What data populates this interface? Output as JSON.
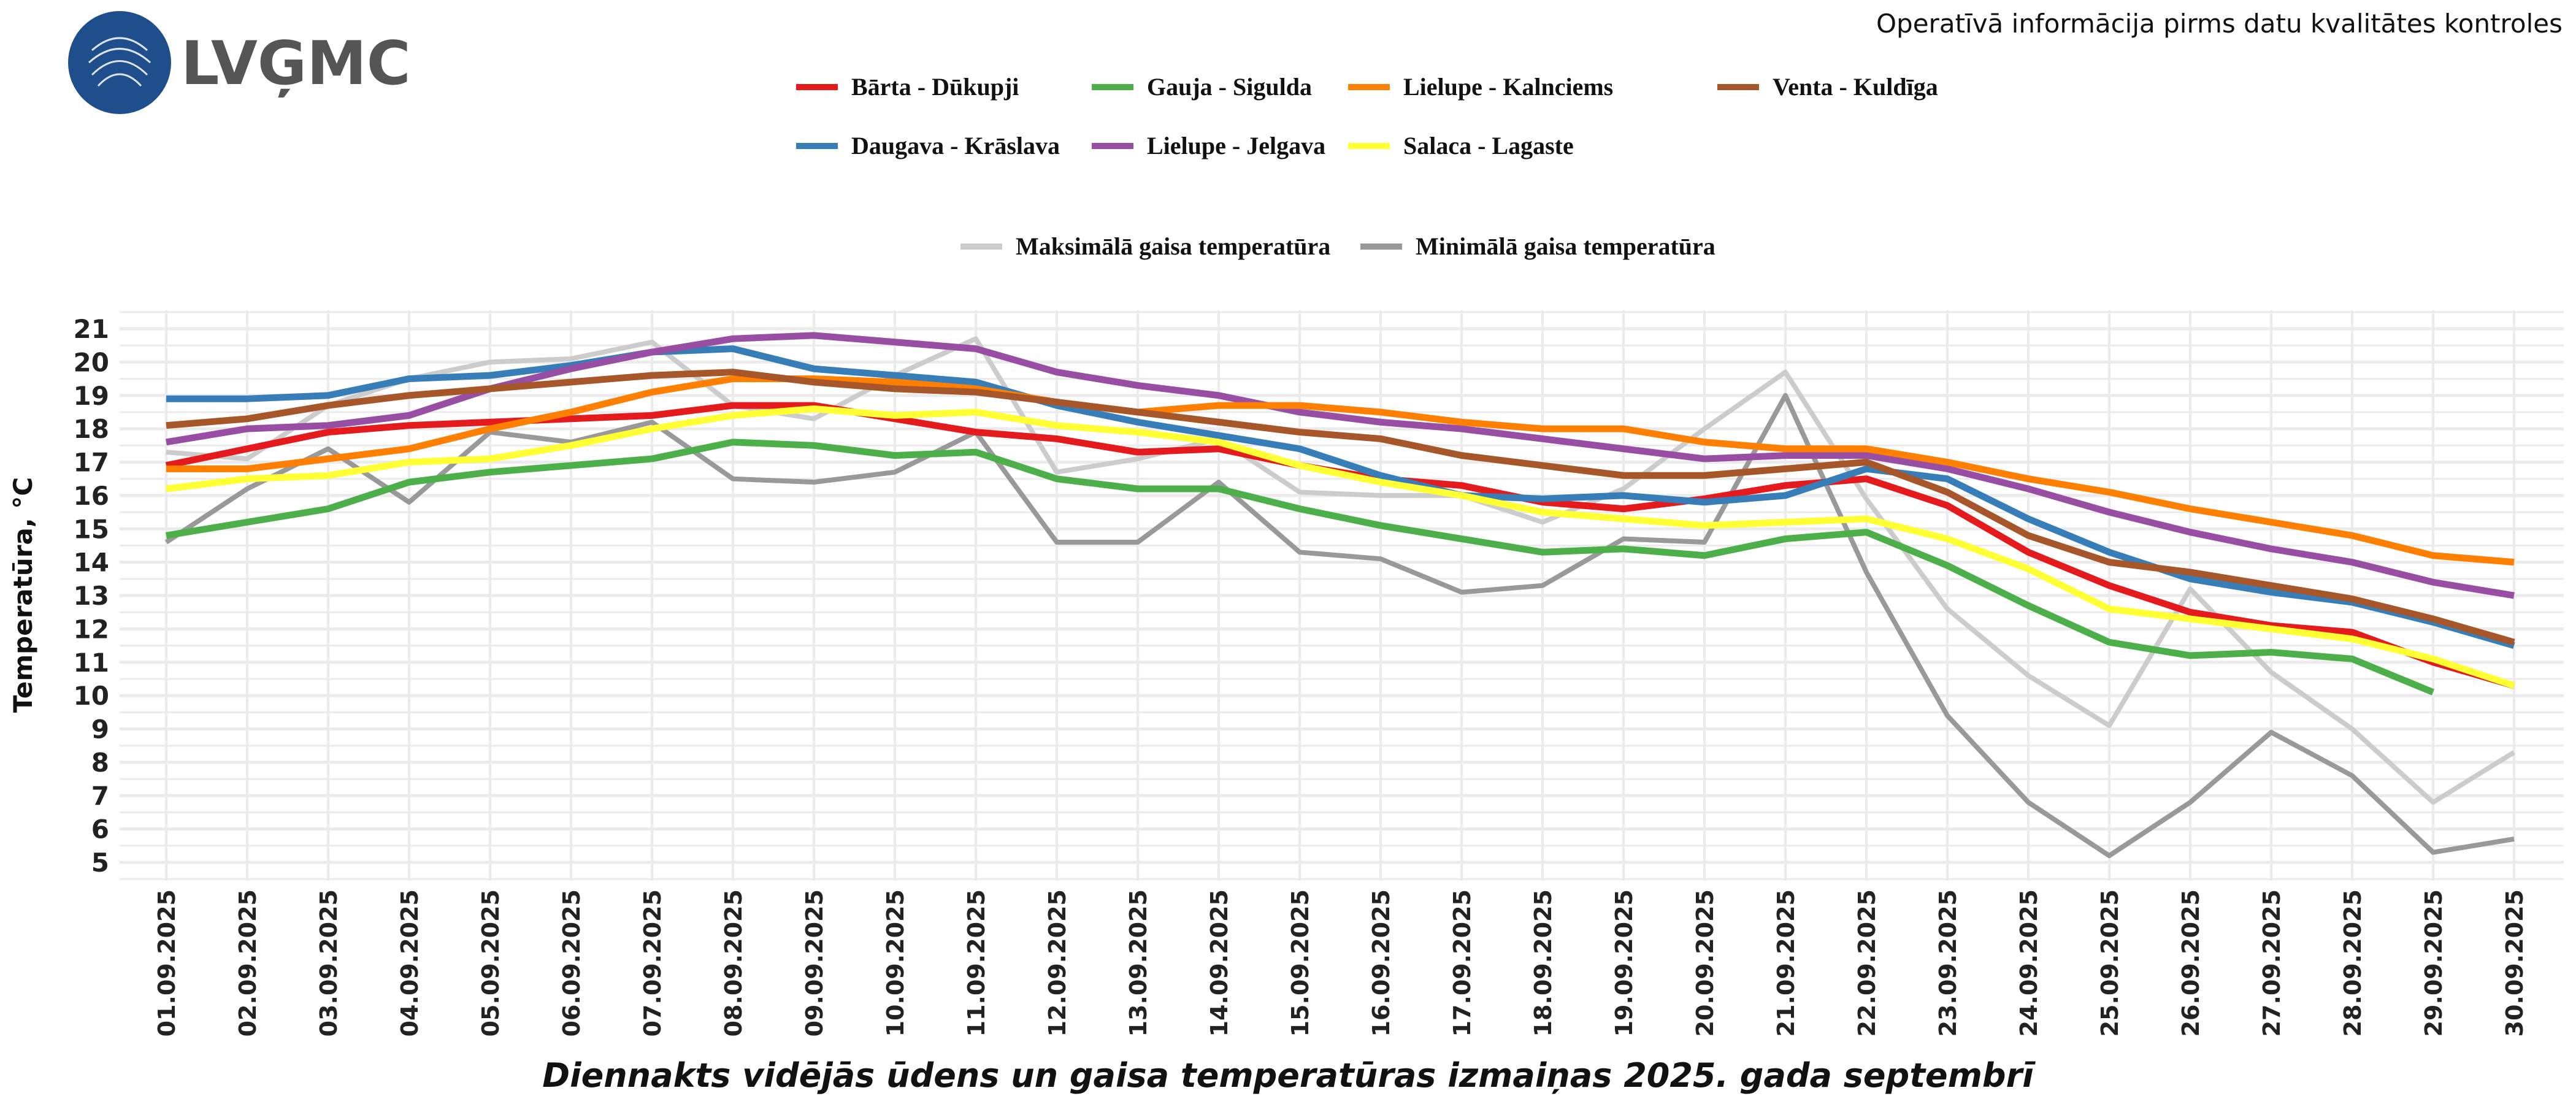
{
  "header": {
    "logo_text": "LVĢMC",
    "note": "Operatīvā informācija pirms datu kvalitātes kontroles"
  },
  "chart_data": {
    "type": "line",
    "title": "Diennakts vidējās ūdens un gaisa temperatūras izmaiņas 2025. gada septembrī",
    "xlabel": "",
    "ylabel": "Temperatūra, °C",
    "ylim": [
      5,
      21
    ],
    "yticks": [
      5,
      6,
      7,
      8,
      9,
      10,
      11,
      12,
      13,
      14,
      15,
      16,
      17,
      18,
      19,
      20,
      21
    ],
    "grid": true,
    "legend": "top",
    "categories": [
      "01.09.2025",
      "02.09.2025",
      "03.09.2025",
      "04.09.2025",
      "05.09.2025",
      "06.09.2025",
      "07.09.2025",
      "08.09.2025",
      "09.09.2025",
      "10.09.2025",
      "11.09.2025",
      "12.09.2025",
      "13.09.2025",
      "14.09.2025",
      "15.09.2025",
      "16.09.2025",
      "17.09.2025",
      "18.09.2025",
      "19.09.2025",
      "20.09.2025",
      "21.09.2025",
      "22.09.2025",
      "23.09.2025",
      "24.09.2025",
      "25.09.2025",
      "26.09.2025",
      "27.09.2025",
      "28.09.2025",
      "29.09.2025",
      "30.09.2025"
    ],
    "series": [
      {
        "name": "Maksimālā gaisa temperatūra",
        "color": "#cccccc",
        "group": "air",
        "values": [
          17.3,
          17.1,
          18.7,
          19.5,
          20.0,
          20.1,
          20.6,
          18.7,
          18.3,
          19.6,
          20.7,
          16.7,
          17.1,
          17.7,
          16.1,
          16.0,
          16.0,
          15.2,
          16.2,
          18.0,
          19.7,
          15.9,
          12.6,
          10.6,
          9.1,
          13.2,
          10.7,
          9.0,
          6.8,
          8.3
        ]
      },
      {
        "name": "Minimālā gaisa temperatūra",
        "color": "#999999",
        "group": "air",
        "values": [
          14.6,
          16.2,
          17.4,
          15.8,
          17.9,
          17.6,
          18.2,
          16.5,
          16.4,
          16.7,
          17.9,
          14.6,
          14.6,
          16.4,
          14.3,
          14.1,
          13.1,
          13.3,
          14.7,
          14.6,
          19.0,
          13.7,
          9.4,
          6.8,
          5.2,
          6.8,
          8.9,
          7.6,
          5.3,
          5.7
        ]
      },
      {
        "name": "Bārta - Dūkupji",
        "color": "#e41a1c",
        "group": "water",
        "values": [
          16.9,
          17.4,
          17.9,
          18.1,
          18.2,
          18.3,
          18.4,
          18.7,
          18.7,
          18.3,
          17.9,
          17.7,
          17.3,
          17.4,
          16.9,
          16.5,
          16.3,
          15.8,
          15.6,
          15.9,
          16.3,
          16.5,
          15.7,
          14.3,
          13.3,
          12.5,
          12.1,
          11.9,
          11.0,
          10.3
        ]
      },
      {
        "name": "Daugava - Krāslava",
        "color": "#377eb8",
        "group": "water",
        "values": [
          18.9,
          18.9,
          19.0,
          19.5,
          19.6,
          19.9,
          20.3,
          20.4,
          19.8,
          19.6,
          19.4,
          18.7,
          18.2,
          17.8,
          17.4,
          16.6,
          16.0,
          15.9,
          16.0,
          15.8,
          16.0,
          16.8,
          16.5,
          15.3,
          14.3,
          13.5,
          13.1,
          12.8,
          12.2,
          11.5
        ]
      },
      {
        "name": "Gauja - Sigulda",
        "color": "#4daf4a",
        "group": "water",
        "values": [
          14.8,
          15.2,
          15.6,
          16.4,
          16.7,
          16.9,
          17.1,
          17.6,
          17.5,
          17.2,
          17.3,
          16.5,
          16.2,
          16.2,
          15.6,
          15.1,
          14.7,
          14.3,
          14.4,
          14.2,
          14.7,
          14.9,
          13.9,
          12.7,
          11.6,
          11.2,
          11.3,
          11.1,
          10.1,
          null
        ]
      },
      {
        "name": "Lielupe - Jelgava",
        "color": "#984ea3",
        "group": "water",
        "values": [
          17.6,
          18.0,
          18.1,
          18.4,
          19.2,
          19.8,
          20.3,
          20.7,
          20.8,
          20.6,
          20.4,
          19.7,
          19.3,
          19.0,
          18.5,
          18.2,
          18.0,
          17.7,
          17.4,
          17.1,
          17.2,
          17.2,
          16.8,
          16.2,
          15.5,
          14.9,
          14.4,
          14.0,
          13.4,
          13.0
        ]
      },
      {
        "name": "Lielupe - Kalnciems",
        "color": "#ff7f00",
        "group": "water",
        "values": [
          16.8,
          16.8,
          17.1,
          17.4,
          18.0,
          18.5,
          19.1,
          19.5,
          19.5,
          19.4,
          19.2,
          18.8,
          18.5,
          18.7,
          18.7,
          18.5,
          18.2,
          18.0,
          18.0,
          17.6,
          17.4,
          17.4,
          17.0,
          16.5,
          16.1,
          15.6,
          15.2,
          14.8,
          14.2,
          14.0
        ]
      },
      {
        "name": "Salaca - Lagaste",
        "color": "#ffff33",
        "group": "water",
        "values": [
          16.2,
          16.5,
          16.6,
          17.0,
          17.1,
          17.5,
          18.0,
          18.4,
          18.6,
          18.4,
          18.5,
          18.1,
          17.9,
          17.6,
          16.9,
          16.4,
          16.0,
          15.5,
          15.3,
          15.1,
          15.2,
          15.3,
          14.7,
          13.8,
          12.6,
          12.3,
          12.0,
          11.7,
          11.1,
          10.3
        ]
      },
      {
        "name": "Venta - Kuldīga",
        "color": "#a65628",
        "group": "water",
        "values": [
          18.1,
          18.3,
          18.7,
          19.0,
          19.2,
          19.4,
          19.6,
          19.7,
          19.4,
          19.2,
          19.1,
          18.8,
          18.5,
          18.2,
          17.9,
          17.7,
          17.2,
          16.9,
          16.6,
          16.6,
          16.8,
          17.0,
          16.1,
          14.8,
          14.0,
          13.7,
          13.3,
          12.9,
          12.3,
          11.6
        ]
      }
    ]
  }
}
